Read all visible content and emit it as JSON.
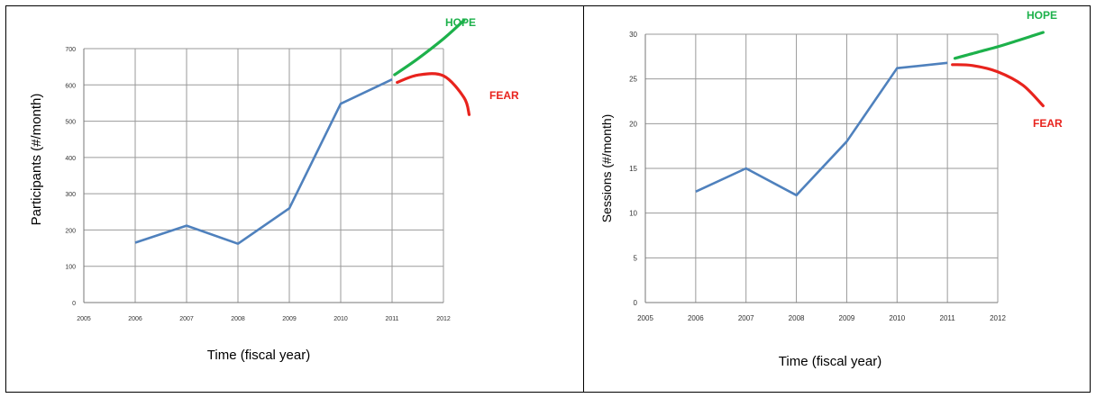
{
  "chart_data": [
    {
      "type": "line",
      "ylabel": "Participants (#/month)",
      "xlabel": "Time (fiscal year)",
      "xlim": [
        2005,
        2012
      ],
      "ylim": [
        0,
        700
      ],
      "x_ticks": [
        "2005",
        "2006",
        "2007",
        "2008",
        "2009",
        "2010",
        "2011",
        "2012"
      ],
      "y_ticks": [
        "0",
        "100",
        "200",
        "300",
        "400",
        "500",
        "600",
        "700"
      ],
      "grid": true,
      "series": [
        {
          "x": [
            2006,
            2007,
            2008,
            2009,
            2010,
            2011
          ],
          "y": [
            165,
            212,
            162,
            260,
            548,
            615
          ],
          "color": "#4f81bd"
        }
      ],
      "projections": [
        {
          "label": "HOPE",
          "color": "#1db14b",
          "x": [
            2011.05,
            2011.5,
            2012,
            2012.4
          ],
          "y": [
            628,
            672,
            727,
            778
          ]
        },
        {
          "label": "FEAR",
          "color": "#e8231d",
          "x": [
            2011.1,
            2011.5,
            2012,
            2012.4,
            2012.5
          ],
          "y": [
            607,
            627,
            625,
            565,
            518
          ]
        }
      ]
    },
    {
      "type": "line",
      "ylabel": "Sessions (#/month)",
      "xlabel": "Time (fiscal year)",
      "xlim": [
        2005,
        2012
      ],
      "ylim": [
        0,
        30
      ],
      "x_ticks": [
        "2005",
        "2006",
        "2007",
        "2008",
        "2009",
        "2010",
        "2011",
        "2012"
      ],
      "y_ticks": [
        "0",
        "5",
        "10",
        "15",
        "20",
        "25",
        "30"
      ],
      "grid": true,
      "series": [
        {
          "x": [
            2006,
            2007,
            2008,
            2009,
            2010,
            2011
          ],
          "y": [
            12.4,
            15,
            12,
            18,
            26.2,
            26.8
          ],
          "color": "#4f81bd"
        }
      ],
      "projections": [
        {
          "label": "HOPE",
          "color": "#1db14b",
          "x": [
            2011.15,
            2011.6,
            2012,
            2012.4,
            2012.9
          ],
          "y": [
            27.3,
            28,
            28.6,
            29.3,
            30.2
          ]
        },
        {
          "label": "FEAR",
          "color": "#e8231d",
          "x": [
            2011.1,
            2011.5,
            2012,
            2012.5,
            2012.9
          ],
          "y": [
            26.6,
            26.5,
            25.8,
            24.3,
            22
          ]
        }
      ]
    }
  ]
}
